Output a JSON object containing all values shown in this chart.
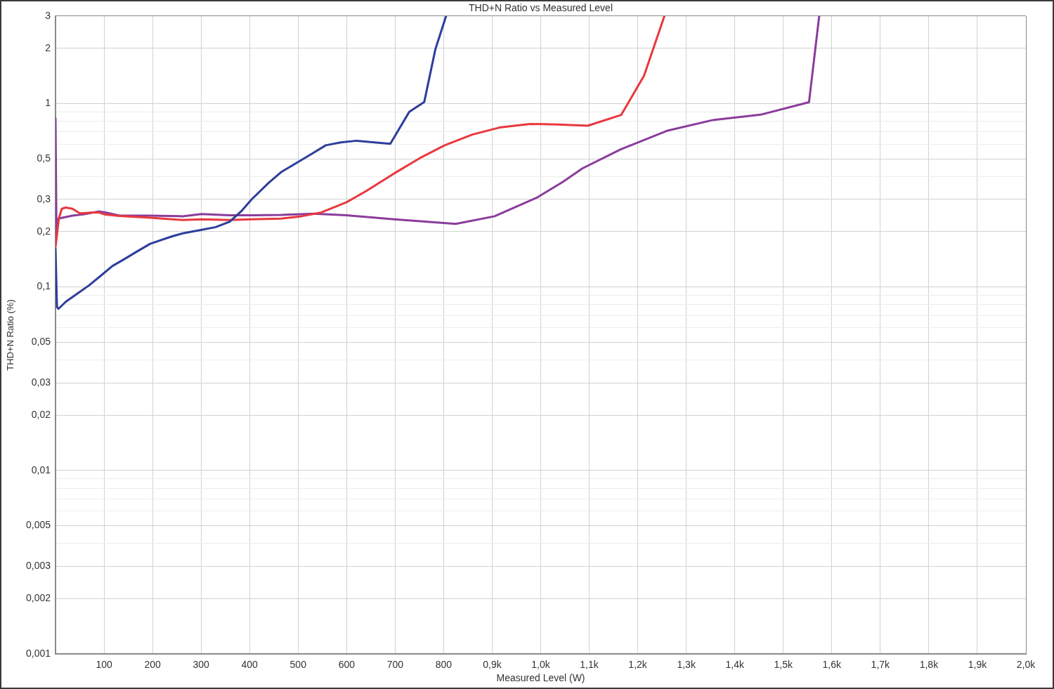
{
  "chart_data": {
    "type": "line",
    "title": "THD+N Ratio vs Measured Level",
    "xlabel": "Measured Level (W)",
    "ylabel": "THD+N Ratio (%)",
    "log": "y",
    "grid": true,
    "xlim": [
      0,
      2000
    ],
    "xticks": [
      100,
      200,
      300,
      400,
      500,
      600,
      700,
      800,
      {
        "value": 900,
        "label": "0,9k"
      },
      {
        "value": 1000,
        "label": "1,0k"
      },
      {
        "value": 1100,
        "label": "1,1k"
      },
      {
        "value": 1200,
        "label": "1,2k"
      },
      {
        "value": 1300,
        "label": "1,3k"
      },
      {
        "value": 1400,
        "label": "1,4k"
      },
      {
        "value": 1500,
        "label": "1,5k"
      },
      {
        "value": 1600,
        "label": "1,6k"
      },
      {
        "value": 1700,
        "label": "1,7k"
      },
      {
        "value": 1800,
        "label": "1,8k"
      },
      {
        "value": 1900,
        "label": "1,9k"
      },
      {
        "value": 2000,
        "label": "2,0k"
      }
    ],
    "ylim": [
      0.001,
      3
    ],
    "yticks": [
      {
        "value": 0.001,
        "label": "0,001"
      },
      {
        "value": 0.002,
        "label": "0,002"
      },
      {
        "value": 0.003,
        "label": "0,003"
      },
      {
        "value": 0.004,
        "label": null
      },
      {
        "value": 0.005,
        "label": "0,005"
      },
      {
        "value": 0.006,
        "label": null
      },
      {
        "value": 0.007,
        "label": null
      },
      {
        "value": 0.008,
        "label": null
      },
      {
        "value": 0.009,
        "label": null
      },
      {
        "value": 0.01,
        "label": "0,01"
      },
      {
        "value": 0.02,
        "label": "0,02"
      },
      {
        "value": 0.03,
        "label": "0,03"
      },
      {
        "value": 0.04,
        "label": null
      },
      {
        "value": 0.05,
        "label": "0,05"
      },
      {
        "value": 0.06,
        "label": null
      },
      {
        "value": 0.07,
        "label": null
      },
      {
        "value": 0.08,
        "label": null
      },
      {
        "value": 0.09,
        "label": null
      },
      {
        "value": 0.1,
        "label": "0,1"
      },
      {
        "value": 0.2,
        "label": "0,2"
      },
      {
        "value": 0.3,
        "label": "0,3"
      },
      {
        "value": 0.4,
        "label": null
      },
      {
        "value": 0.5,
        "label": "0,5"
      },
      {
        "value": 0.6,
        "label": null
      },
      {
        "value": 0.7,
        "label": null
      },
      {
        "value": 0.8,
        "label": null
      },
      {
        "value": 0.9,
        "label": null
      },
      1,
      2,
      3
    ],
    "series": [
      {
        "color": "#2d3e9b",
        "x": [
          0,
          3,
          6,
          21,
          45,
          69,
          93,
          117,
          142,
          166,
          195,
          238,
          262,
          301,
          330,
          359,
          383,
          404,
          440,
          465,
          501,
          527,
          557,
          588,
          620,
          690,
          729,
          760,
          783,
          805
        ],
        "values": [
          0.162,
          0.078,
          0.076,
          0.083,
          0.092,
          0.102,
          0.115,
          0.13,
          0.142,
          0.155,
          0.172,
          0.188,
          0.196,
          0.205,
          0.212,
          0.227,
          0.259,
          0.3,
          0.371,
          0.423,
          0.482,
          0.53,
          0.592,
          0.614,
          0.627,
          0.603,
          0.9,
          1.02,
          1.98,
          3
        ]
      },
      {
        "color": "#e8383d",
        "x": [
          0,
          7,
          13,
          21,
          35,
          50,
          69,
          88,
          103,
          132,
          190,
          262,
          301,
          359,
          402,
          465,
          507,
          548,
          600,
          641,
          698,
          755,
          802,
          859,
          915,
          978,
          1035,
          1097,
          1166,
          1213,
          1255
        ],
        "values": [
          0.165,
          0.237,
          0.267,
          0.271,
          0.267,
          0.252,
          0.254,
          0.255,
          0.248,
          0.244,
          0.239,
          0.232,
          0.234,
          0.232,
          0.234,
          0.236,
          0.243,
          0.255,
          0.29,
          0.334,
          0.416,
          0.511,
          0.592,
          0.677,
          0.74,
          0.774,
          0.769,
          0.757,
          0.867,
          1.42,
          3
        ]
      },
      {
        "color": "#8a3c9b",
        "x": [
          0,
          2,
          5,
          9,
          35,
          59,
          88,
          103,
          132,
          190,
          262,
          301,
          359,
          407,
          465,
          532,
          600,
          698,
          825,
          905,
          993,
          1045,
          1086,
          1165,
          1260,
          1355,
          1453,
          1553,
          1574
        ],
        "values": [
          0.83,
          0.19,
          0.235,
          0.237,
          0.245,
          0.249,
          0.258,
          0.255,
          0.245,
          0.245,
          0.243,
          0.25,
          0.246,
          0.246,
          0.247,
          0.251,
          0.246,
          0.234,
          0.221,
          0.243,
          0.308,
          0.373,
          0.443,
          0.563,
          0.71,
          0.813,
          0.869,
          1.017,
          3
        ]
      }
    ]
  }
}
